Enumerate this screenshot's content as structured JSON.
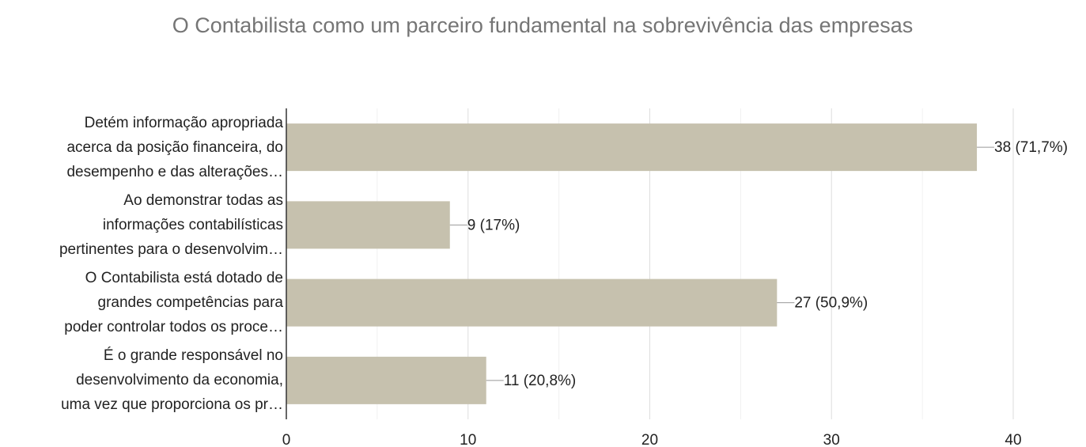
{
  "chart_data": {
    "type": "bar",
    "orientation": "horizontal",
    "title": "O Contabilista como um parceiro fundamental na sobrevivência das empresas",
    "categories": [
      "Detém informação apropriada\nacerca da posição financeira, do\ndesempenho e das alterações…",
      "Ao demonstrar todas as\ninformações contabilísticas\npertinentes para o desenvolvim…",
      "O Contabilista está dotado de\ngrandes competências para\npoder controlar todos os proce…",
      "É o grande responsável no\ndesenvolvimento da economia,\numa vez que proporciona os pr…"
    ],
    "values": [
      38,
      9,
      27,
      11
    ],
    "value_labels": [
      "38 (71,7%)",
      "9 (17%)",
      "27 (50,9%)",
      "11 (20,8%)"
    ],
    "color": "#c6c1ae",
    "xlim": [
      0,
      40
    ],
    "xticks": [
      0,
      10,
      20,
      30,
      40
    ],
    "minor_xticks": [
      5,
      15,
      25,
      35
    ],
    "grid": true
  }
}
